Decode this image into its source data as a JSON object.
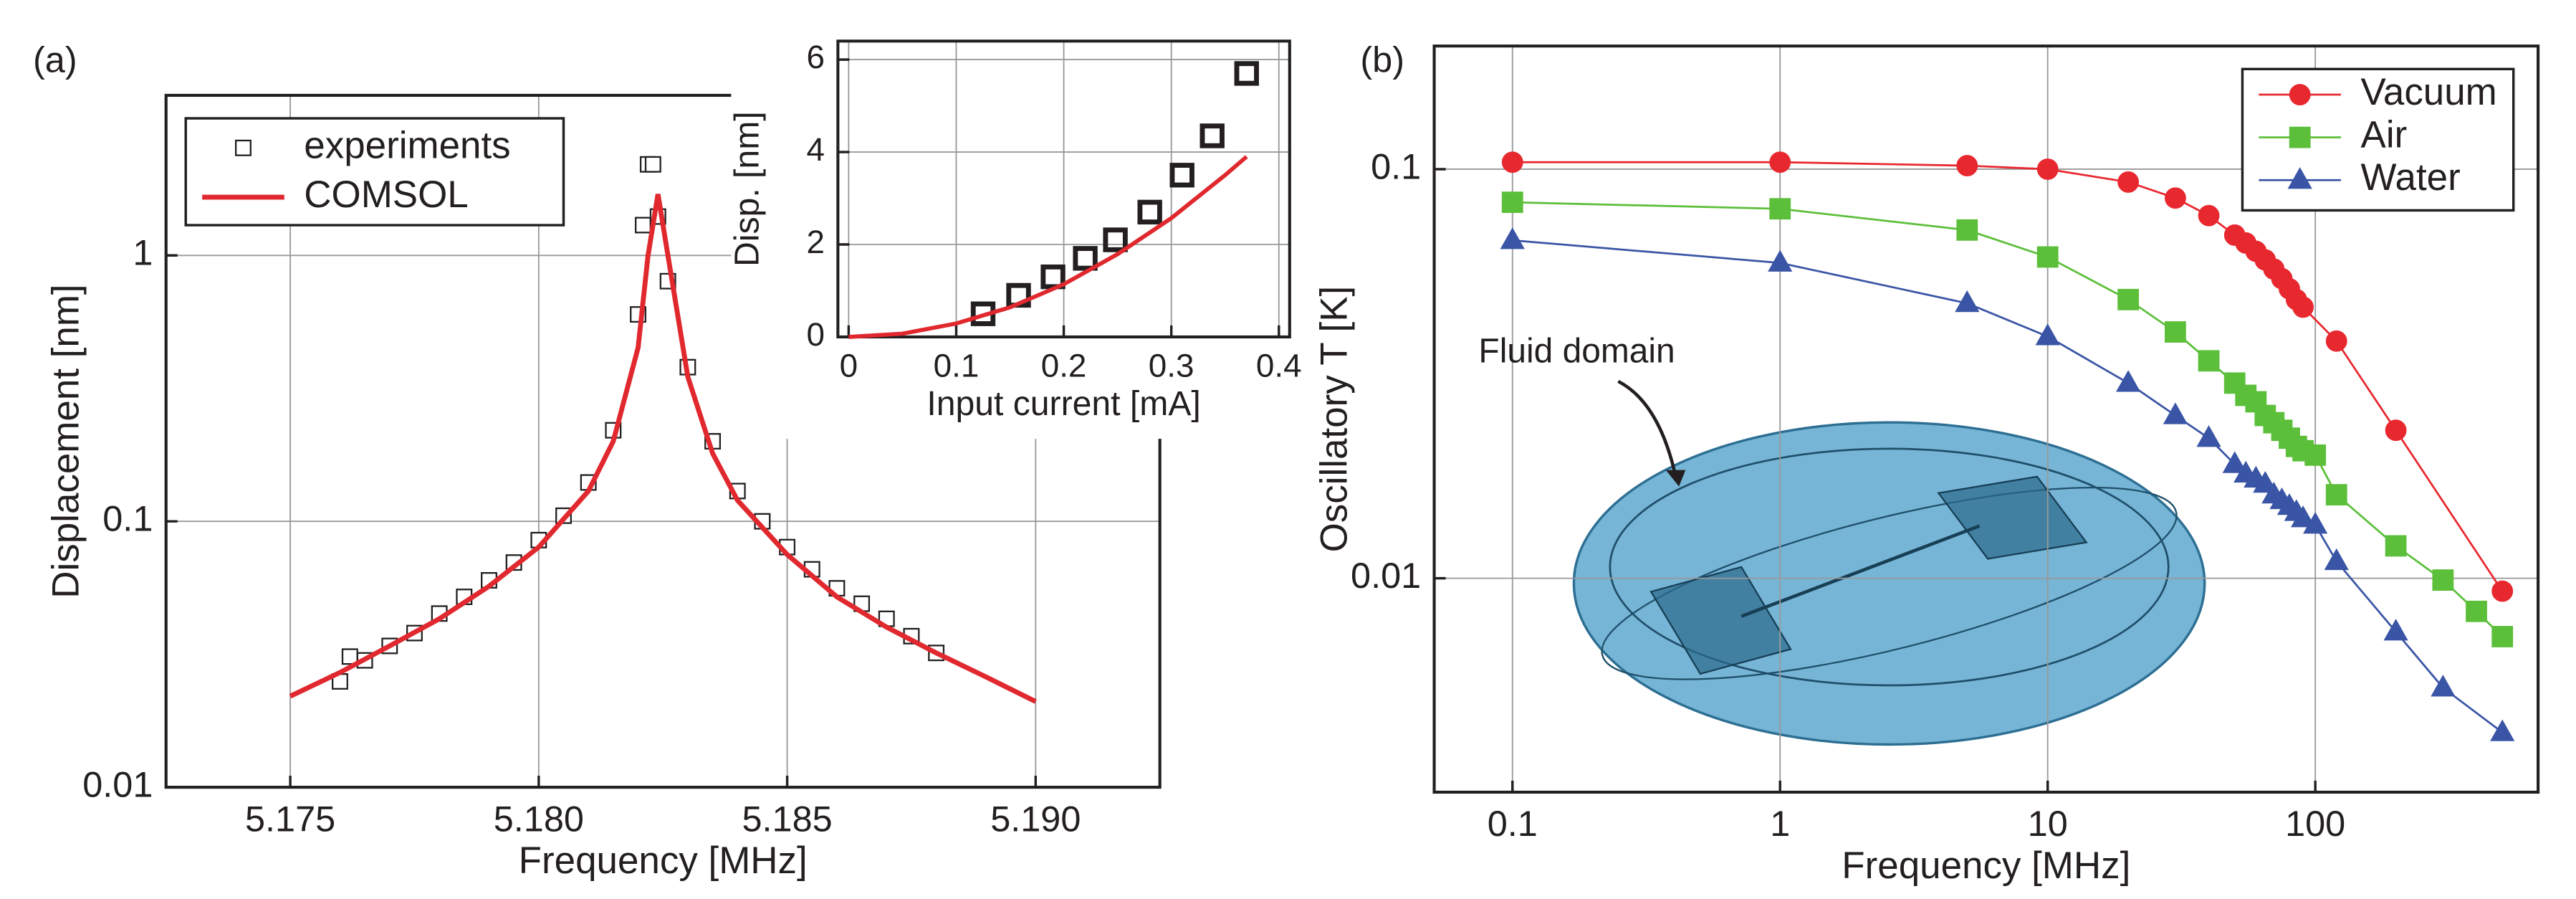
{
  "chart_data": [
    {
      "type": "line",
      "panel_label": "(a)",
      "xlabel": "Frequency [MHz]",
      "ylabel": "Displacement [nm]",
      "xlim": [
        5.1725,
        5.1925
      ],
      "ylim": [
        0.01,
        4
      ],
      "ylog": true,
      "grid": true,
      "xticks": [
        5.175,
        {
          "value": 5.18,
          "label": "5.180"
        },
        5.185,
        {
          "value": 5.19,
          "label": "5.190"
        }
      ],
      "yticks": [
        0.01,
        0.1,
        1
      ],
      "series": [
        {
          "name": "experiments",
          "color": "#231f20",
          "marker": "square",
          "line": false,
          "x": [
            5.176,
            5.1762,
            5.1765,
            5.177,
            5.1775,
            5.178,
            5.1785,
            5.179,
            5.1795,
            5.18,
            5.1805,
            5.181,
            5.1815,
            5.182,
            5.1821,
            5.1822,
            5.1823,
            5.1824,
            5.1826,
            5.183,
            5.1835,
            5.184,
            5.1845,
            5.185,
            5.1855,
            5.186,
            5.1865,
            5.187,
            5.1875,
            5.188
          ],
          "values": [
            0.025,
            0.031,
            0.03,
            0.034,
            0.038,
            0.045,
            0.052,
            0.06,
            0.07,
            0.085,
            0.105,
            0.14,
            0.22,
            0.6,
            1.3,
            2.2,
            2.2,
            1.4,
            0.8,
            0.38,
            0.2,
            0.13,
            0.1,
            0.08,
            0.066,
            0.056,
            0.049,
            0.043,
            0.037,
            0.032
          ]
        },
        {
          "name": "COMSOL",
          "color": "#e0282e",
          "marker": null,
          "line": true,
          "x": [
            5.175,
            5.176,
            5.177,
            5.178,
            5.179,
            5.18,
            5.181,
            5.1815,
            5.182,
            5.1822,
            5.1824,
            5.1826,
            5.183,
            5.1835,
            5.184,
            5.185,
            5.186,
            5.187,
            5.188,
            5.189,
            5.19
          ],
          "values": [
            0.022,
            0.027,
            0.034,
            0.043,
            0.057,
            0.08,
            0.13,
            0.2,
            0.45,
            1.0,
            1.7,
            1.0,
            0.35,
            0.18,
            0.12,
            0.075,
            0.052,
            0.04,
            0.032,
            0.026,
            0.021
          ]
        }
      ]
    },
    {
      "type": "line",
      "xlabel": "Input current [mA]",
      "ylabel": "Disp. [nm]",
      "xlim": [
        -0.01,
        0.41
      ],
      "ylim": [
        0,
        6.4
      ],
      "ylog": false,
      "grid": true,
      "xticks": [
        0,
        0.1,
        0.2,
        0.3,
        0.4
      ],
      "yticks": [
        0,
        2,
        4,
        6
      ],
      "series": [
        {
          "name": "experiments",
          "color": "#231f20",
          "marker": "square",
          "line": false,
          "x": [
            0.125,
            0.158,
            0.19,
            0.22,
            0.248,
            0.28,
            0.31,
            0.338,
            0.37
          ],
          "values": [
            0.5,
            0.9,
            1.3,
            1.7,
            2.1,
            2.7,
            3.5,
            4.35,
            5.7
          ]
        },
        {
          "name": "COMSOL",
          "color": "#e0282e",
          "marker": null,
          "line": true,
          "x": [
            0,
            0.05,
            0.1,
            0.15,
            0.2,
            0.25,
            0.3,
            0.35,
            0.37
          ],
          "values": [
            0,
            0.07,
            0.29,
            0.64,
            1.14,
            1.79,
            2.57,
            3.5,
            3.9
          ]
        }
      ]
    },
    {
      "type": "line",
      "panel_label": "(b)",
      "xlabel": "Frequency [MHz]",
      "ylabel": "Oscillatory T [K]",
      "annotation": "Fluid domain",
      "xlim": [
        0.051,
        680
      ],
      "ylim": [
        0.003,
        0.2
      ],
      "xlog": true,
      "ylog": true,
      "grid": true,
      "xticks": [
        0.1,
        1,
        10,
        100
      ],
      "yticks": [
        0.01,
        0.1
      ],
      "series": [
        {
          "name": "Vacuum",
          "color": "#e8282f",
          "marker": "circle",
          "line": true,
          "x": [
            0.1,
            1,
            5,
            10,
            20,
            30,
            40,
            50,
            55,
            60,
            65,
            70,
            75,
            80,
            85,
            90,
            120,
            200,
            500
          ],
          "values": [
            0.104,
            0.104,
            0.102,
            0.1,
            0.093,
            0.085,
            0.077,
            0.069,
            0.066,
            0.063,
            0.06,
            0.057,
            0.054,
            0.051,
            0.048,
            0.046,
            0.038,
            0.023,
            0.0093
          ]
        },
        {
          "name": "Air",
          "color": "#5cbf3a",
          "marker": "square",
          "line": true,
          "x": [
            0.1,
            1,
            5,
            10,
            20,
            30,
            40,
            50,
            55,
            60,
            65,
            70,
            75,
            80,
            85,
            90,
            100,
            120,
            200,
            300,
            400,
            500
          ],
          "values": [
            0.083,
            0.08,
            0.071,
            0.061,
            0.048,
            0.04,
            0.034,
            0.03,
            0.028,
            0.027,
            0.025,
            0.024,
            0.023,
            0.022,
            0.021,
            0.0205,
            0.02,
            0.016,
            0.012,
            0.0099,
            0.0083,
            0.0072
          ]
        },
        {
          "name": "Water",
          "color": "#3a55a5",
          "marker": "triangle",
          "line": true,
          "x": [
            0.1,
            1,
            5,
            10,
            20,
            30,
            40,
            50,
            55,
            60,
            65,
            70,
            75,
            80,
            85,
            90,
            100,
            120,
            200,
            300,
            500
          ],
          "values": [
            0.067,
            0.059,
            0.047,
            0.039,
            0.03,
            0.025,
            0.022,
            0.019,
            0.018,
            0.0175,
            0.017,
            0.016,
            0.0155,
            0.015,
            0.0145,
            0.014,
            0.0135,
            0.011,
            0.0074,
            0.0054,
            0.0042
          ]
        }
      ]
    }
  ]
}
